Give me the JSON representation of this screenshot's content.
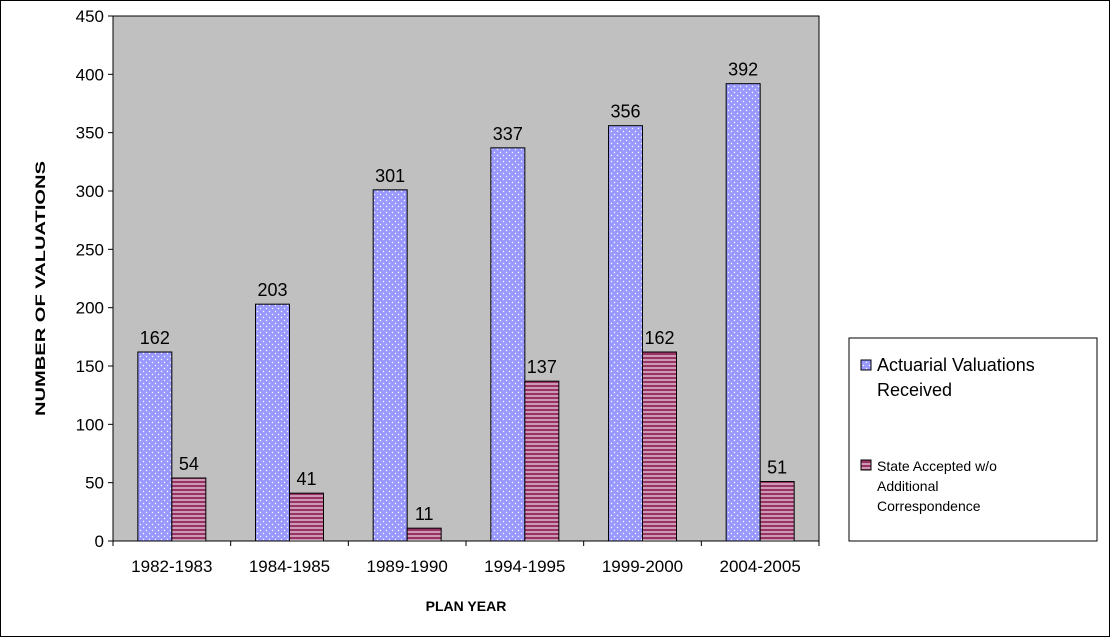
{
  "chart_data": {
    "type": "bar",
    "title": "",
    "xlabel": "PLAN YEAR",
    "ylabel": "NUMBER OF VALUATIONS",
    "ylim": [
      0,
      450
    ],
    "ytick_step": 50,
    "grid": false,
    "legend": "right",
    "plot_background": "#c0c0c0",
    "categories": [
      "1982-1983",
      "1984-1985",
      "1989-1990",
      "1994-1995",
      "1999-2000",
      "2004-2005"
    ],
    "series": [
      {
        "name": "Actuarial Valuations Received",
        "legend_lines": [
          "Actuarial Valuations",
          "Received"
        ],
        "color": "#9999ff",
        "pattern": "dotted",
        "values": [
          162,
          203,
          301,
          337,
          356,
          392
        ]
      },
      {
        "name": "State Accepted w/o Additional Correspondence",
        "legend_lines": [
          "State Accepted w/o",
          "Additional",
          "Correspondence"
        ],
        "color": "#993366",
        "pattern": "horizontal-stripes",
        "values": [
          54,
          41,
          11,
          137,
          162,
          51
        ]
      }
    ]
  }
}
